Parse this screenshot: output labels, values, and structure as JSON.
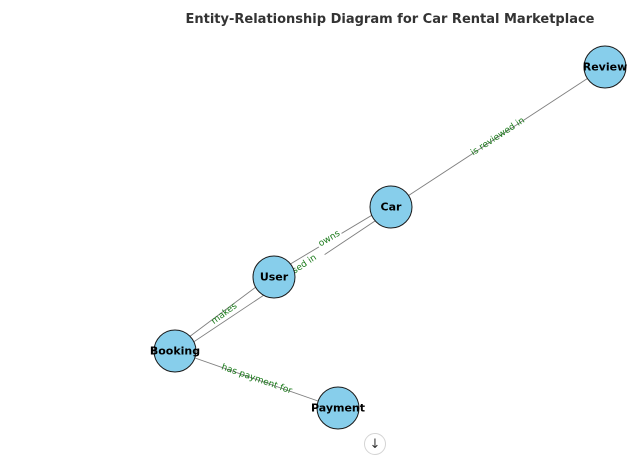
{
  "title": "Entity-Relationship Diagram for Car Rental Marketplace",
  "nodes": [
    {
      "id": "review",
      "label": "Review"
    },
    {
      "id": "car",
      "label": "Car"
    },
    {
      "id": "user",
      "label": "User"
    },
    {
      "id": "booking",
      "label": "Booking"
    },
    {
      "id": "payment",
      "label": "Payment"
    }
  ],
  "edges": [
    {
      "from": "car",
      "to": "review",
      "label": "is reviewed in"
    },
    {
      "from": "user",
      "to": "car",
      "label": "owns"
    },
    {
      "from": "booking",
      "to": "car",
      "label": "is used in"
    },
    {
      "from": "user",
      "to": "booking",
      "label": "makes"
    },
    {
      "from": "booking",
      "to": "payment",
      "label": "has payment for"
    }
  ],
  "scroll_button": {
    "icon": "arrow-down-icon",
    "glyph": "↓"
  },
  "colors": {
    "node_fill": "#87ceeb",
    "edge": "#7f7f7f",
    "edge_label": "#1a7a1a"
  }
}
